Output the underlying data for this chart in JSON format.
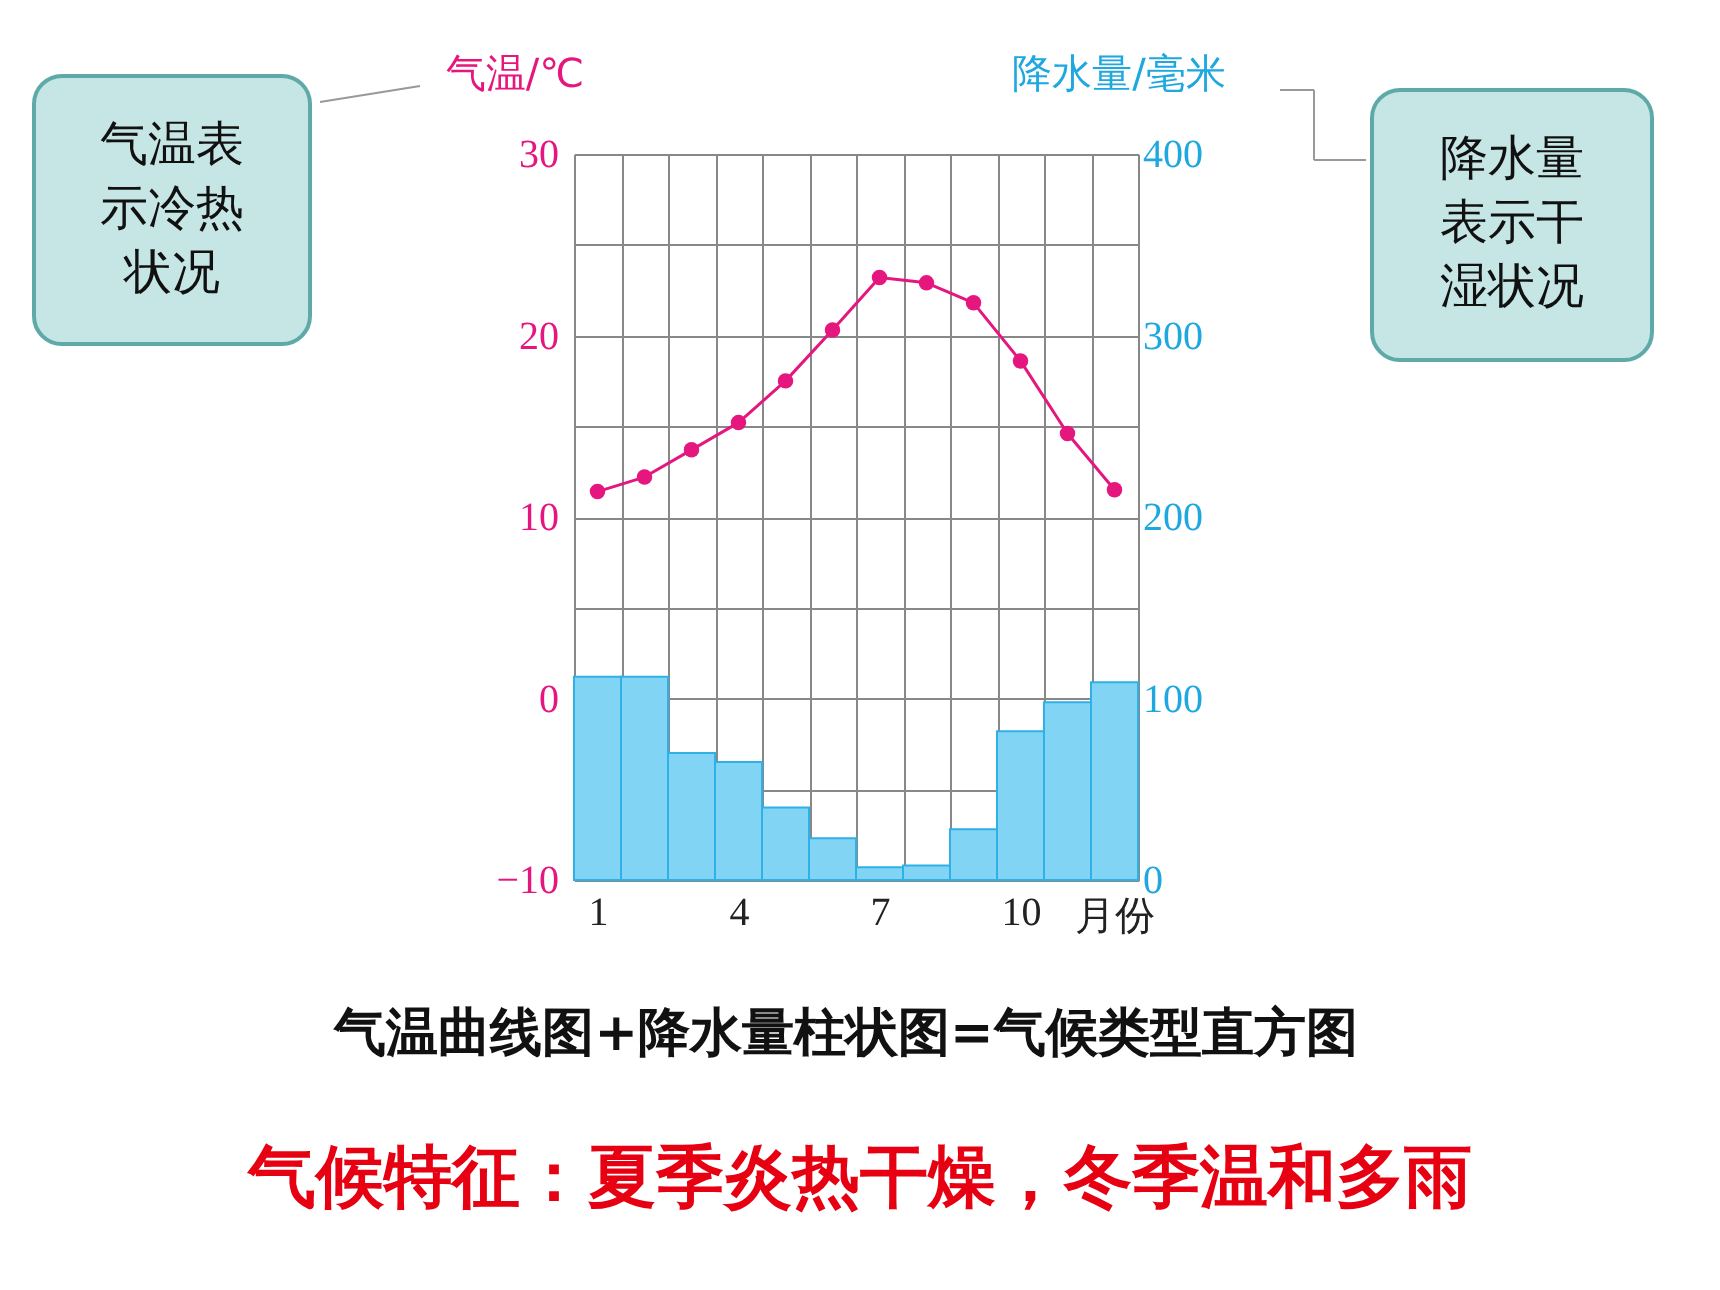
{
  "chart_data": {
    "type": "bar",
    "categories": [
      "1",
      null,
      null,
      "4",
      null,
      null,
      "7",
      null,
      null,
      "10",
      null,
      null
    ],
    "xlabel": "月份",
    "ylabel": "气温/℃",
    "y2label": "降水量/毫米",
    "ylim": [
      -10,
      30
    ],
    "yticks": [
      {
        "value": -10,
        "label": "−10"
      },
      {
        "value": -5,
        "label": null
      },
      0,
      {
        "value": 5,
        "label": null
      },
      10,
      {
        "value": 15,
        "label": null
      },
      20,
      {
        "value": 25,
        "label": null
      },
      30
    ],
    "y2lim": [
      0,
      400
    ],
    "y2ticks": [
      0,
      100,
      200,
      300,
      400
    ],
    "grid": true,
    "series": [
      {
        "axis": "y2",
        "color": "#82d4f5",
        "values": [
          112,
          112,
          70,
          65,
          40,
          23,
          7,
          8,
          28,
          82,
          98,
          109
        ]
      },
      {
        "type": "line",
        "axis": "y",
        "color": "#e5177f",
        "marker": "circle",
        "values": [
          11.4,
          12.2,
          13.7,
          15.2,
          17.5,
          20.3,
          23.2,
          22.9,
          21.8,
          18.6,
          14.6,
          11.5
        ]
      }
    ],
    "annotations": [
      "气温表示冷热状况",
      "降水量表示干湿状况",
      "气温曲线图+降水量柱状图=气候类型直方图",
      "气候特征：夏季炎热干燥，冬季温和多雨"
    ]
  }
}
